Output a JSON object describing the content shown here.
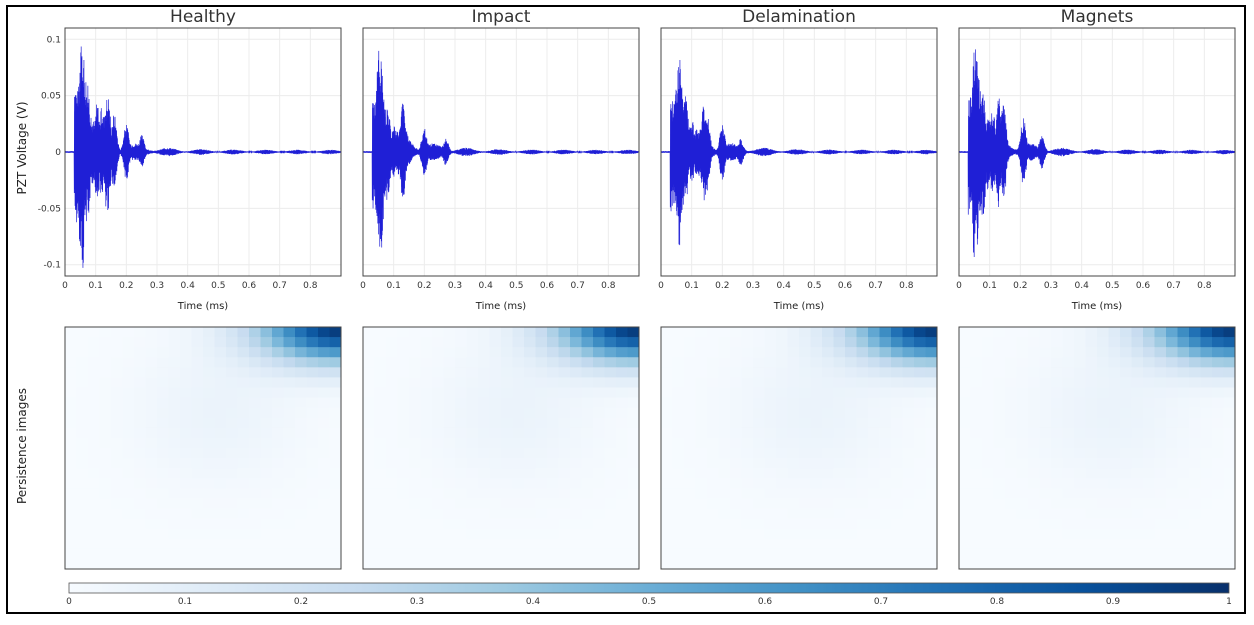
{
  "chart_data": {
    "type": "line",
    "panel_titles": [
      "Healthy",
      "Impact",
      "Delamination",
      "Magnets"
    ],
    "signals": {
      "ylabel": "PZT Voltage (V)",
      "xlabel": "Time (ms)",
      "xlim": [
        0,
        0.9
      ],
      "ylim": [
        -0.11,
        0.11
      ],
      "xticks": [
        0,
        0.1,
        0.2,
        0.3,
        0.4,
        0.5,
        0.6,
        0.7,
        0.8
      ],
      "yticks": [
        -0.1,
        -0.05,
        0,
        0.05,
        0.1
      ],
      "xtick_labels": [
        "0",
        "0.1",
        "0.2",
        "0.3",
        "0.4",
        "0.5",
        "0.6",
        "0.7",
        "0.8"
      ],
      "ytick_labels": [
        "-0.1",
        "-0.05",
        "0",
        "0.05",
        "0.1"
      ],
      "line_color": "#1f1fd6",
      "grid": true,
      "series": [
        {
          "peaks": [
            {
              "t": 0.04,
              "v": -0.065
            },
            {
              "t": 0.052,
              "v": 0.095
            },
            {
              "t": 0.057,
              "v": -0.105
            },
            {
              "t": 0.065,
              "v": 0.075
            },
            {
              "t": 0.075,
              "v": -0.06
            },
            {
              "t": 0.09,
              "v": 0.03
            },
            {
              "t": 0.105,
              "v": -0.045
            },
            {
              "t": 0.12,
              "v": 0.04
            },
            {
              "t": 0.135,
              "v": 0.05
            },
            {
              "t": 0.14,
              "v": -0.052
            },
            {
              "t": 0.16,
              "v": 0.035
            },
            {
              "t": 0.2,
              "v": 0.025
            },
            {
              "t": 0.25,
              "v": 0.015
            }
          ]
        },
        {
          "peaks": [
            {
              "t": 0.045,
              "v": 0.06
            },
            {
              "t": 0.052,
              "v": 0.092
            },
            {
              "t": 0.058,
              "v": -0.098
            },
            {
              "t": 0.068,
              "v": 0.05
            },
            {
              "t": 0.08,
              "v": -0.045
            },
            {
              "t": 0.1,
              "v": 0.025
            },
            {
              "t": 0.13,
              "v": 0.045
            },
            {
              "t": 0.135,
              "v": -0.03
            },
            {
              "t": 0.2,
              "v": 0.022
            },
            {
              "t": 0.27,
              "v": 0.012
            }
          ]
        },
        {
          "peaks": [
            {
              "t": 0.045,
              "v": 0.05
            },
            {
              "t": 0.055,
              "v": 0.082
            },
            {
              "t": 0.06,
              "v": -0.088
            },
            {
              "t": 0.07,
              "v": 0.06
            },
            {
              "t": 0.08,
              "v": -0.05
            },
            {
              "t": 0.1,
              "v": 0.03
            },
            {
              "t": 0.14,
              "v": 0.045
            },
            {
              "t": 0.15,
              "v": -0.035
            },
            {
              "t": 0.2,
              "v": 0.025
            },
            {
              "t": 0.26,
              "v": 0.012
            }
          ]
        },
        {
          "peaks": [
            {
              "t": 0.04,
              "v": 0.05
            },
            {
              "t": 0.05,
              "v": 0.097
            },
            {
              "t": 0.056,
              "v": -0.095
            },
            {
              "t": 0.065,
              "v": 0.07
            },
            {
              "t": 0.078,
              "v": -0.06
            },
            {
              "t": 0.095,
              "v": 0.035
            },
            {
              "t": 0.11,
              "v": -0.04
            },
            {
              "t": 0.13,
              "v": 0.05
            },
            {
              "t": 0.145,
              "v": -0.045
            },
            {
              "t": 0.21,
              "v": 0.03
            },
            {
              "t": 0.27,
              "v": 0.015
            }
          ]
        }
      ]
    },
    "persistence": {
      "type": "heatmap",
      "ylabel": "Persistence images",
      "grid_size": 24,
      "hotspot": "top-right",
      "colorbar": {
        "range": [
          0,
          1
        ],
        "ticks": [
          0,
          0.1,
          0.2,
          0.3,
          0.4,
          0.5,
          0.6,
          0.7,
          0.8,
          0.9,
          1
        ],
        "tick_labels": [
          "0",
          "0.1",
          "0.2",
          "0.3",
          "0.4",
          "0.5",
          "0.6",
          "0.7",
          "0.8",
          "0.9",
          "1"
        ],
        "colormap": "Blues",
        "colors": [
          "#f7fbff",
          "#deebf7",
          "#c6dbef",
          "#9ecae1",
          "#6baed6",
          "#4292c6",
          "#2171b5",
          "#08519c",
          "#08306b"
        ],
        "placement": "bottom"
      }
    }
  }
}
